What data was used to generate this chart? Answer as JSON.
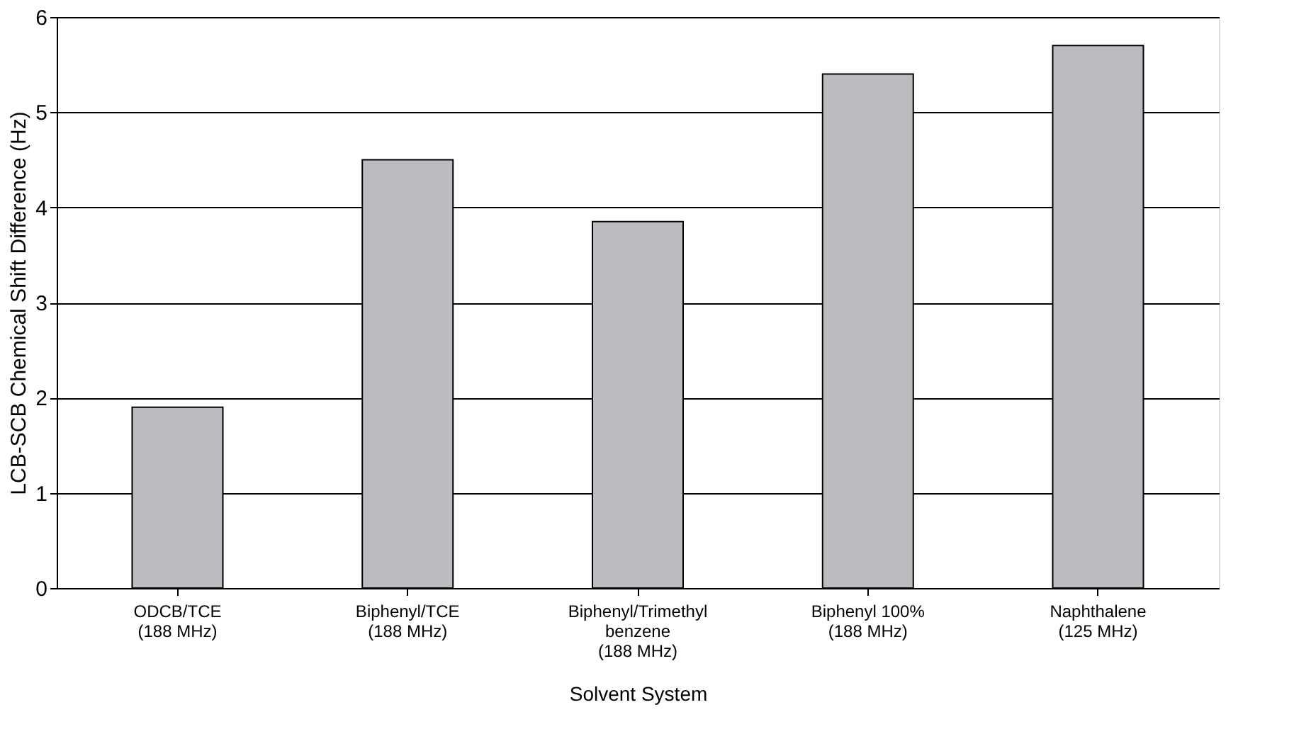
{
  "chart_data": {
    "type": "bar",
    "xlabel": "Solvent System",
    "ylabel": "LCB-SCB Chemical Shift Difference (Hz)",
    "categories": [
      "ODCB/TCE\n(188 MHz)",
      "Biphenyl/TCE\n(188 MHz)",
      "Biphenyl/Trimethyl\nbenzene\n(188 MHz)",
      "Biphenyl 100%\n(188 MHz)",
      "Naphthalene\n(125 MHz)"
    ],
    "values": [
      1.9,
      4.5,
      3.85,
      5.4,
      5.7
    ],
    "color": "#bcbcc0",
    "ylim": [
      0,
      6
    ],
    "yticks": [
      0,
      1,
      2,
      3,
      4,
      5,
      6
    ],
    "grid": "y"
  }
}
